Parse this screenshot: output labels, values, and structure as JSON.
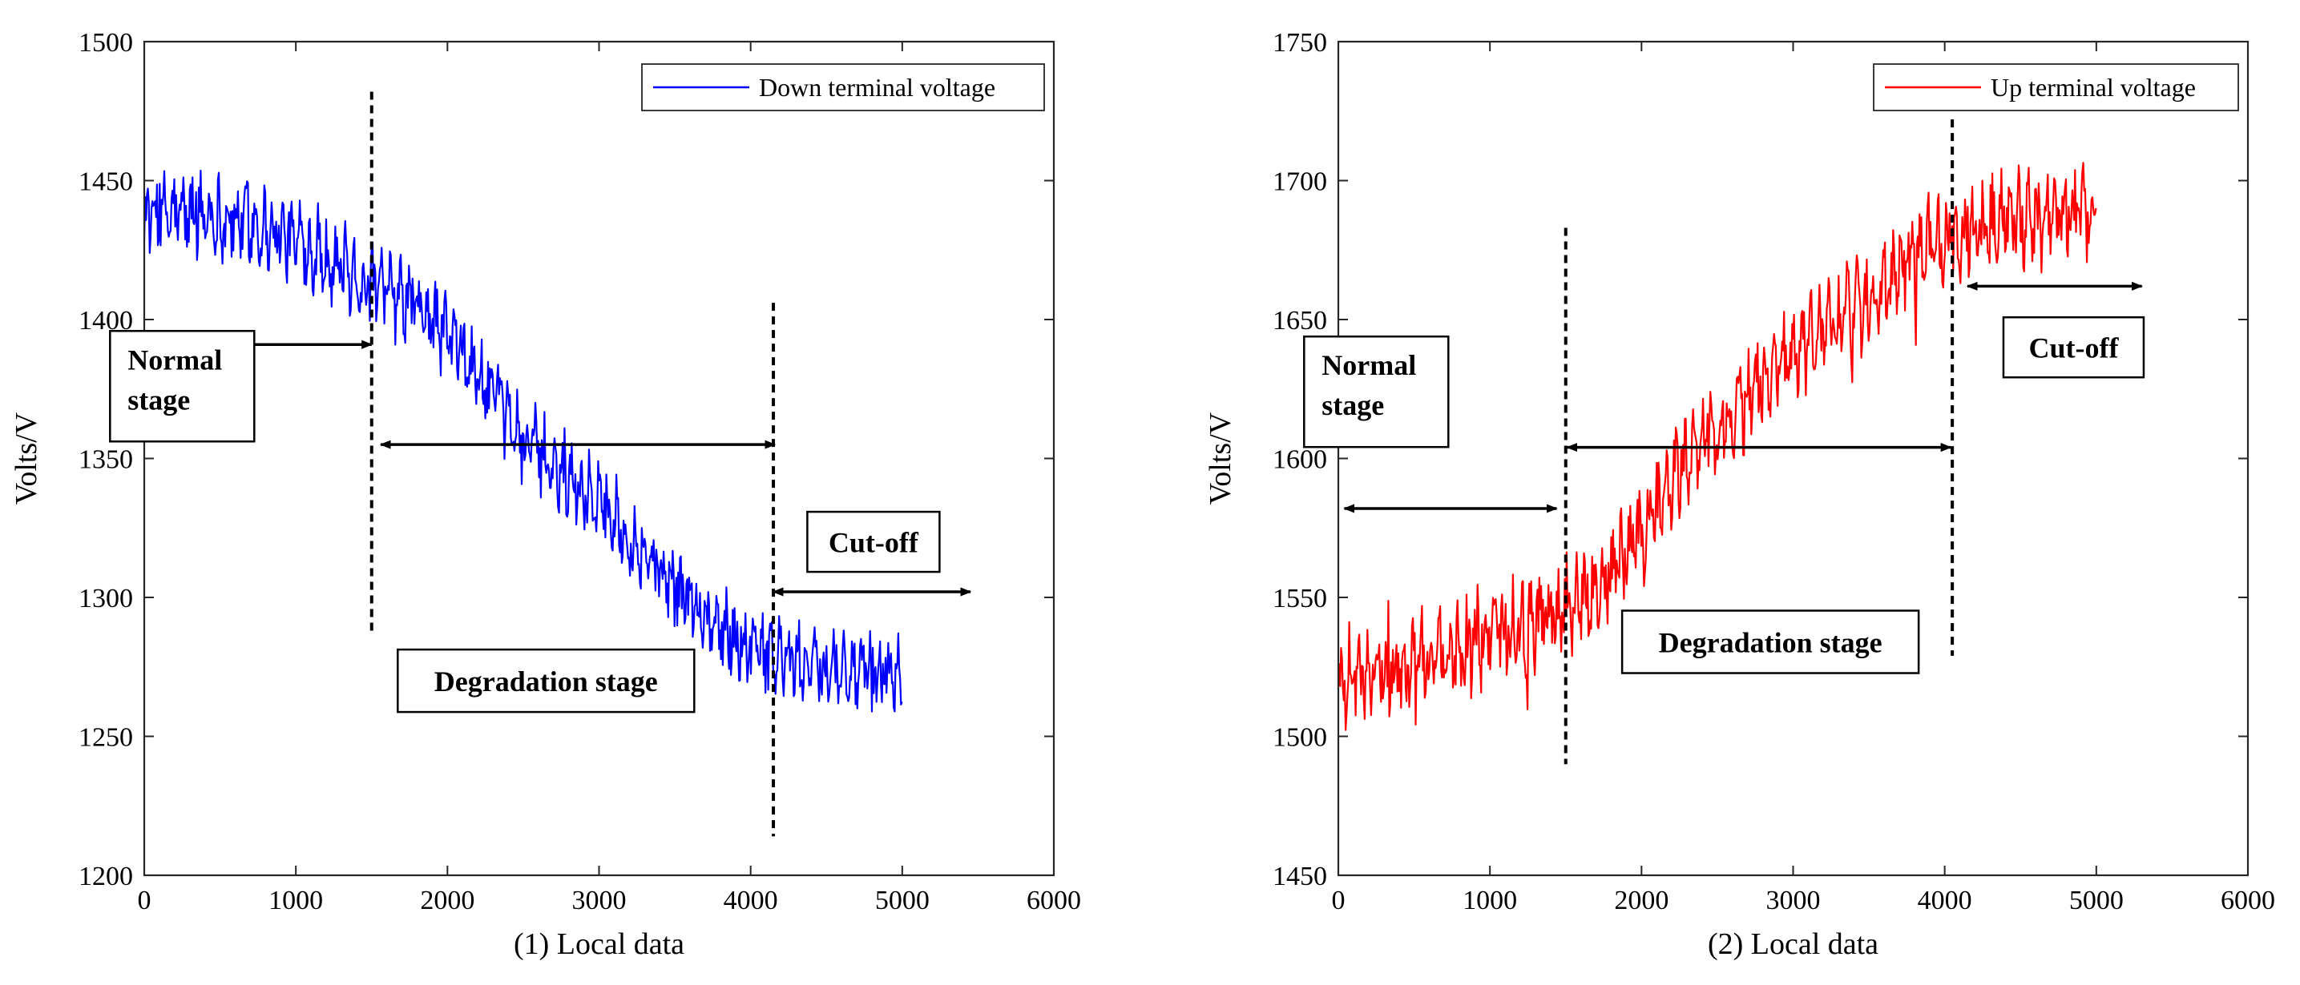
{
  "chart_data": [
    {
      "type": "line",
      "xlabel": "(1) Local data",
      "ylabel": "Volts/V",
      "xlim": [
        0,
        6000
      ],
      "ylim": [
        1200,
        1500
      ],
      "xticks": [
        0,
        1000,
        2000,
        3000,
        4000,
        5000,
        6000
      ],
      "yticks": [
        1200,
        1250,
        1300,
        1350,
        1400,
        1450,
        1500
      ],
      "xtick_labels": [
        "0",
        "1000",
        "2000",
        "3000",
        "4000",
        "5000",
        "6000"
      ],
      "ytick_labels": [
        "1200",
        "1250",
        "1300",
        "1350",
        "1400",
        "1450",
        "1500"
      ],
      "grid": false,
      "legend_position": "top-right",
      "series": [
        {
          "name": "Down terminal voltage",
          "color": "#0000ff",
          "x": [
            0,
            250,
            500,
            750,
            1000,
            1250,
            1500,
            1750,
            2000,
            2250,
            2500,
            2750,
            3000,
            3250,
            3500,
            3750,
            4000,
            4250,
            4500,
            4750,
            5000
          ],
          "values": [
            1437,
            1438,
            1437,
            1434,
            1428,
            1421,
            1412,
            1406,
            1395,
            1376,
            1357,
            1345,
            1335,
            1319,
            1304,
            1291,
            1282,
            1277,
            1275,
            1273,
            1272
          ],
          "noise_amplitude": 13
        }
      ],
      "vlines": [
        {
          "x": 1500,
          "y_range": [
            1288,
            1482
          ]
        },
        {
          "x": 4150,
          "y_range": [
            1214,
            1406
          ]
        }
      ],
      "arrows": [
        {
          "x_range": [
            80,
            1500
          ],
          "y": 1391
        },
        {
          "x_range": [
            1560,
            4160
          ],
          "y": 1355
        },
        {
          "x_range": [
            4150,
            5450
          ],
          "y": 1302
        }
      ],
      "annotations": [
        {
          "lines": [
            "Normal",
            "stage"
          ],
          "anchor": [
            250,
            1376
          ]
        },
        {
          "lines": [
            "Degradation stage"
          ],
          "anchor": [
            2650,
            1270
          ]
        },
        {
          "lines": [
            "Cut-off"
          ],
          "anchor": [
            4810,
            1320
          ]
        }
      ]
    },
    {
      "type": "line",
      "xlabel": "(2) Local data",
      "ylabel": "Volts/V",
      "xlim": [
        0,
        6000
      ],
      "ylim": [
        1450,
        1750
      ],
      "xticks": [
        0,
        1000,
        2000,
        3000,
        4000,
        5000,
        6000
      ],
      "yticks": [
        1450,
        1500,
        1550,
        1600,
        1650,
        1700,
        1750
      ],
      "xtick_labels": [
        "0",
        "1000",
        "2000",
        "3000",
        "4000",
        "5000",
        "6000"
      ],
      "ytick_labels": [
        "1450",
        "1500",
        "1550",
        "1600",
        "1650",
        "1700",
        "1750"
      ],
      "grid": false,
      "legend_position": "top-right",
      "series": [
        {
          "name": "Up terminal voltage",
          "color": "#ff0000",
          "x": [
            0,
            250,
            500,
            750,
            1000,
            1250,
            1500,
            1750,
            2000,
            2250,
            2500,
            2750,
            3000,
            3250,
            3500,
            3750,
            4000,
            4250,
            4500,
            4750,
            5000
          ],
          "values": [
            1521,
            1523,
            1526,
            1530,
            1535,
            1541,
            1546,
            1556,
            1572,
            1597,
            1611,
            1624,
            1636,
            1647,
            1658,
            1670,
            1680,
            1684,
            1686,
            1687,
            1689
          ],
          "noise_amplitude": 15
        }
      ],
      "vlines": [
        {
          "x": 1500,
          "y_range": [
            1490,
            1683
          ]
        },
        {
          "x": 4050,
          "y_range": [
            1529,
            1722
          ]
        }
      ],
      "arrows": [
        {
          "x_range": [
            40,
            1440
          ],
          "y": 1582
        },
        {
          "x_range": [
            1510,
            4040
          ],
          "y": 1604
        },
        {
          "x_range": [
            4150,
            5300
          ],
          "y": 1662
        }
      ],
      "annotations": [
        {
          "lines": [
            "Normal",
            "stage"
          ],
          "anchor": [
            250,
            1624
          ]
        },
        {
          "lines": [
            "Degradation stage"
          ],
          "anchor": [
            2850,
            1534
          ]
        },
        {
          "lines": [
            "Cut-off"
          ],
          "anchor": [
            4850,
            1640
          ]
        }
      ]
    }
  ]
}
